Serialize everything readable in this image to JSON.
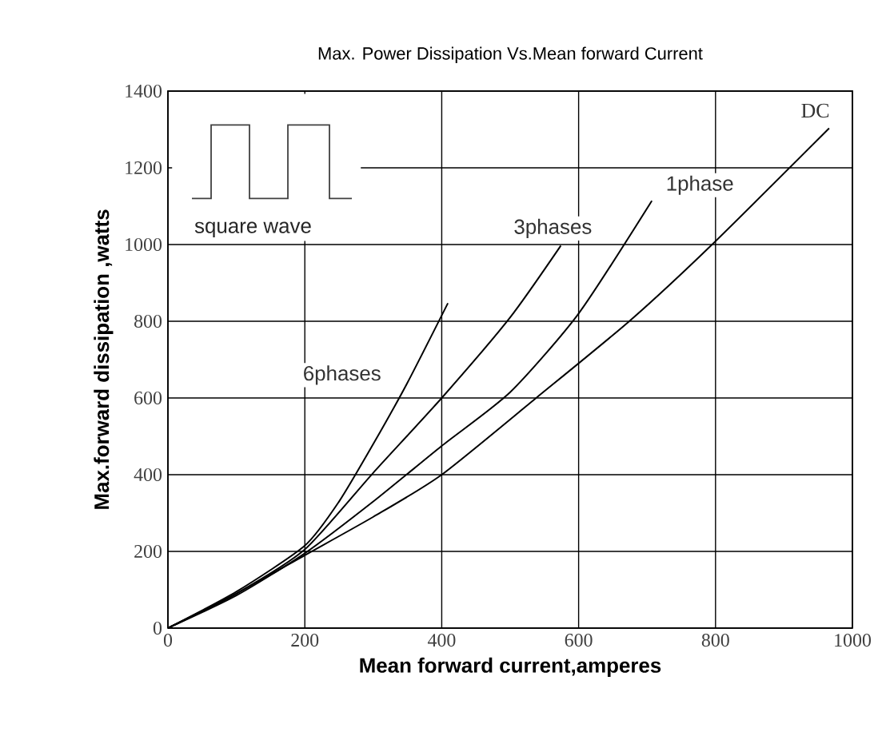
{
  "chart_data": {
    "type": "line",
    "title": "Max. Power Dissipation Vs.Mean forward Current",
    "xlabel": "Mean forward current,amperes",
    "ylabel": "Max.forward dissipation ,watts",
    "xlim": [
      0,
      1000
    ],
    "ylim": [
      0,
      1400
    ],
    "xticks": [
      0,
      200,
      400,
      600,
      800,
      1000
    ],
    "yticks": [
      0,
      200,
      400,
      600,
      800,
      1000,
      1200,
      1400
    ],
    "grid": true,
    "marker": "none",
    "line_style": "solid",
    "annotations": [
      "square wave"
    ],
    "series": [
      {
        "name": "6phases",
        "color": "#000000",
        "x": [
          0,
          100,
          200,
          250,
          300,
          350,
          409
        ],
        "values": [
          0,
          95,
          215,
          330,
          480,
          640,
          847
        ]
      },
      {
        "name": "3phases",
        "color": "#000000",
        "x": [
          0,
          100,
          200,
          300,
          400,
          500,
          574
        ],
        "values": [
          0,
          90,
          205,
          405,
          600,
          810,
          997
        ]
      },
      {
        "name": "1phase",
        "color": "#000000",
        "x": [
          0,
          100,
          200,
          300,
          400,
          500,
          600,
          707
        ],
        "values": [
          0,
          85,
          195,
          330,
          475,
          615,
          820,
          1114
        ]
      },
      {
        "name": "DC",
        "color": "#000000",
        "x": [
          0,
          100,
          200,
          300,
          400,
          538,
          674,
          795,
          966
        ],
        "values": [
          0,
          90,
          190,
          290,
          400,
          600,
          800,
          1000,
          1303
        ]
      }
    ]
  }
}
